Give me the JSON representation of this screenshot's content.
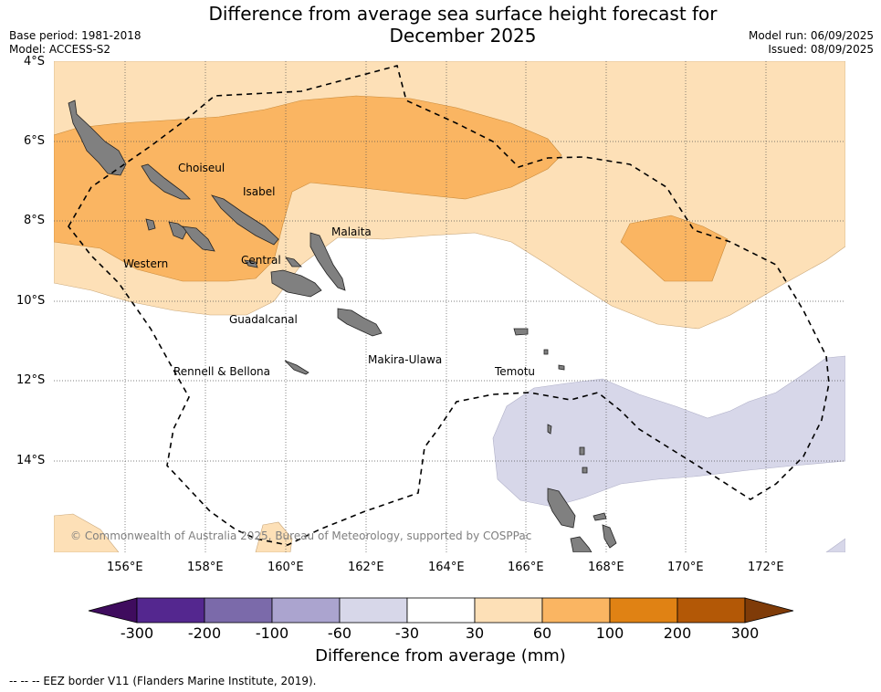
{
  "title_line1": "Difference from average sea surface height forecast for",
  "title_line2": "December 2025",
  "base_period": "Base period: 1981-2018",
  "model": "Model: ACCESS-S2",
  "model_run": "Model run: 06/09/2025",
  "issued": "Issued: 08/09/2025",
  "lat_labels": [
    "4°S",
    "6°S",
    "8°S",
    "10°S",
    "12°S",
    "14°S"
  ],
  "lon_labels": [
    "156°E",
    "158°E",
    "160°E",
    "162°E",
    "164°E",
    "166°E",
    "168°E",
    "170°E",
    "172°E"
  ],
  "places": {
    "choiseul": "Choiseul",
    "isabel": "Isabel",
    "malaita": "Malaita",
    "western": "Western",
    "central": "Central",
    "guadalcanal": "Guadalcanal",
    "makira": "Makira-Ulawa",
    "rennell": "Rennell & Bellona",
    "temotu": "Temotu"
  },
  "copyright": "© Commonwealth of Australia 2025, Bureau of Meteorology, supported by COSPPac",
  "colorbar": {
    "ticks": [
      "-300",
      "-200",
      "-100",
      "-60",
      "-30",
      "30",
      "60",
      "100",
      "200",
      "300"
    ],
    "colors": [
      "#3f0c5e",
      "#54278f",
      "#7b6aaa",
      "#aba4cf",
      "#d7d7e9",
      "#ffffff",
      "#fde0b7",
      "#fab562",
      "#e08214",
      "#b35806",
      "#7f3b08"
    ],
    "label": "Difference from average (mm)"
  },
  "eez_note": "--  --  -- EEZ border V11 (Flanders Marine Institute, 2019)."
}
